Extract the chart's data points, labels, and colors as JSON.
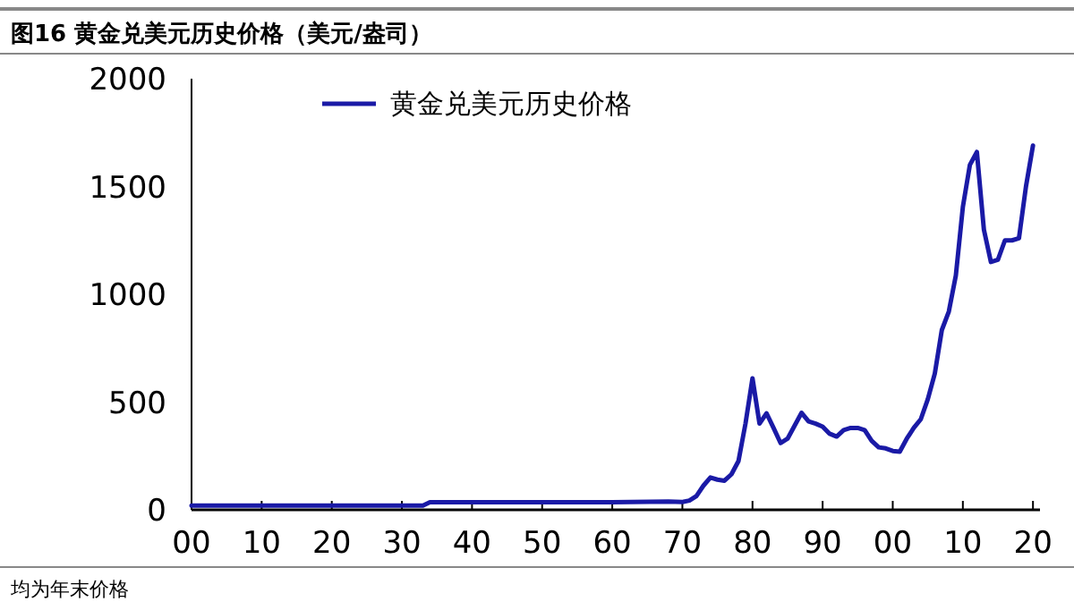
{
  "chart_data": {
    "type": "line",
    "title": "图16 黄金兑美元历史价格（美元/盎司）",
    "annotations": [
      "均为年末价格"
    ],
    "series": [
      {
        "name": "黄金兑美元历史价格",
        "color": "#1a1aa6",
        "x": [
          1900,
          1910,
          1920,
          1933,
          1934,
          1940,
          1950,
          1960,
          1968,
          1970,
          1971,
          1972,
          1973,
          1974,
          1975,
          1976,
          1977,
          1978,
          1979,
          1980,
          1981,
          1982,
          1983,
          1984,
          1985,
          1986,
          1987,
          1988,
          1989,
          1990,
          1991,
          1992,
          1993,
          1994,
          1995,
          1996,
          1997,
          1998,
          1999,
          2000,
          2001,
          2002,
          2003,
          2004,
          2005,
          2006,
          2007,
          2008,
          2009,
          2010,
          2011,
          2012,
          2013,
          2014,
          2015,
          2016,
          2017,
          2018,
          2019,
          2020
        ],
        "values": [
          20,
          20,
          20,
          20,
          35,
          35,
          35,
          35,
          38,
          36,
          43,
          64,
          112,
          150,
          140,
          135,
          165,
          226,
          400,
          610,
          400,
          448,
          380,
          310,
          330,
          390,
          450,
          410,
          400,
          386,
          353,
          340,
          370,
          380,
          380,
          370,
          320,
          290,
          285,
          273,
          270,
          330,
          380,
          420,
          513,
          632,
          834,
          920,
          1087,
          1405,
          1600,
          1660,
          1300,
          1150,
          1160,
          1250,
          1250,
          1260,
          1500,
          1690
        ]
      }
    ],
    "xlim": [
      1900,
      2021
    ],
    "ylim": [
      0,
      2000
    ],
    "xticks": [
      {
        "value": 1900,
        "label": "00"
      },
      {
        "value": 1910,
        "label": "10"
      },
      {
        "value": 1920,
        "label": "20"
      },
      {
        "value": 1930,
        "label": "30"
      },
      {
        "value": 1940,
        "label": "40"
      },
      {
        "value": 1950,
        "label": "50"
      },
      {
        "value": 1960,
        "label": "60"
      },
      {
        "value": 1970,
        "label": "70"
      },
      {
        "value": 1980,
        "label": "80"
      },
      {
        "value": 1990,
        "label": "90"
      },
      {
        "value": 2000,
        "label": "00"
      },
      {
        "value": 2010,
        "label": "10"
      },
      {
        "value": 2020,
        "label": "20"
      }
    ],
    "yticks": [
      0,
      500,
      1000,
      1500,
      2000
    ],
    "grid": false,
    "legend": "top left",
    "line_style": "solid",
    "marker": "none"
  }
}
